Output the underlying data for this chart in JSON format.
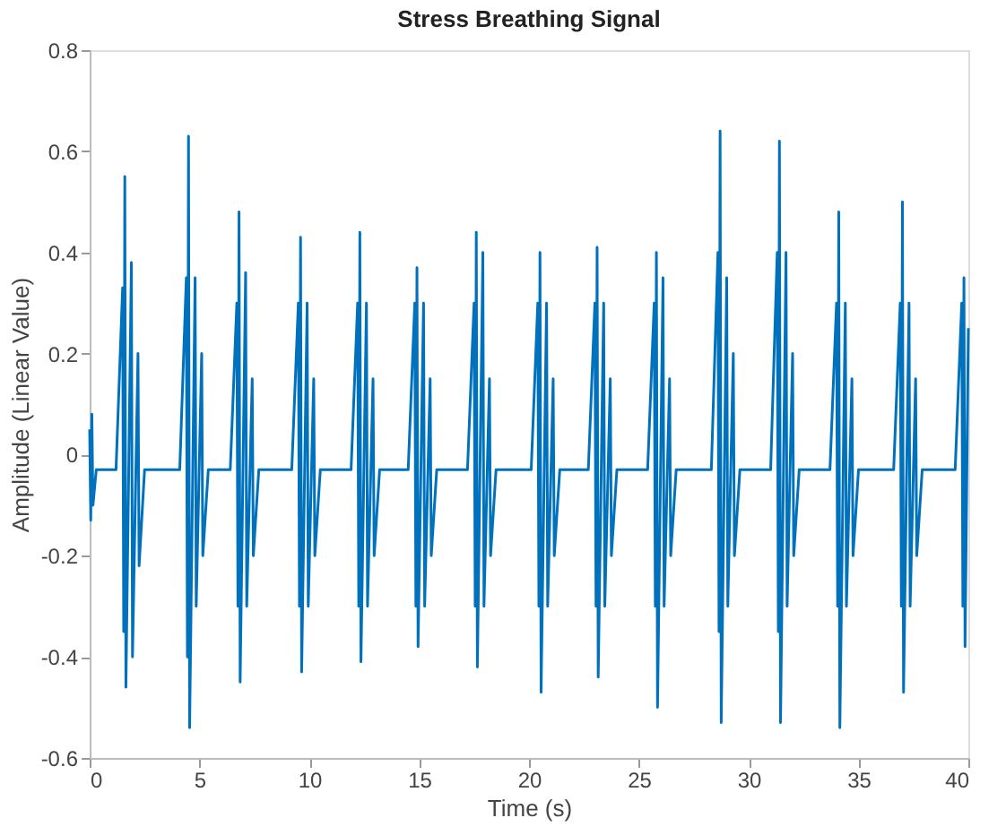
{
  "chart_data": {
    "type": "line",
    "title": "Stress Breathing Signal",
    "xlabel": "Time (s)",
    "ylabel": "Amplitude (Linear Value)",
    "xlim": [
      0,
      40
    ],
    "xticks": [
      0,
      5,
      10,
      15,
      20,
      25,
      30,
      35,
      40
    ],
    "ylim": [
      -0.6,
      0.8
    ],
    "yticks": [
      -0.6,
      -0.4,
      -0.2,
      0,
      0.2,
      0.4,
      0.6,
      0.8
    ],
    "grid": false,
    "legend": false,
    "marker": "none",
    "line_style": "solid",
    "series": [
      {
        "color": "#0072bd",
        "x": [
          0,
          0.05,
          0.1,
          0.15,
          0.3,
          1.2,
          1.5,
          1.55,
          1.6,
          1.65,
          1.9,
          1.95,
          2.2,
          2.25,
          2.5,
          4.1,
          4.4,
          4.45,
          4.5,
          4.55,
          4.8,
          4.85,
          5.1,
          5.15,
          5.4,
          6.4,
          6.7,
          6.75,
          6.8,
          6.85,
          7.1,
          7.15,
          7.4,
          7.45,
          7.7,
          9.2,
          9.5,
          9.55,
          9.6,
          9.65,
          9.9,
          9.95,
          10.2,
          10.25,
          10.5,
          11.9,
          12.2,
          12.25,
          12.3,
          12.35,
          12.6,
          12.65,
          12.9,
          12.95,
          13.2,
          14.5,
          14.8,
          14.85,
          14.9,
          14.95,
          15.2,
          15.25,
          15.5,
          15.55,
          15.8,
          17.2,
          17.5,
          17.55,
          17.6,
          17.65,
          17.9,
          17.95,
          18.2,
          18.25,
          18.5,
          20.1,
          20.4,
          20.45,
          20.5,
          20.55,
          20.8,
          20.85,
          21.1,
          21.15,
          21.4,
          22.7,
          23.0,
          23.05,
          23.1,
          23.15,
          23.4,
          23.45,
          23.7,
          23.75,
          24.0,
          25.4,
          25.7,
          25.75,
          25.8,
          25.85,
          26.1,
          26.15,
          26.4,
          26.45,
          26.7,
          28.3,
          28.6,
          28.65,
          28.7,
          28.75,
          29.0,
          29.05,
          29.3,
          29.35,
          29.6,
          31.0,
          31.3,
          31.35,
          31.4,
          31.45,
          31.7,
          31.75,
          32.0,
          32.05,
          32.3,
          33.7,
          34.0,
          34.05,
          34.1,
          34.15,
          34.4,
          34.45,
          34.7,
          34.75,
          35.0,
          36.6,
          36.9,
          36.95,
          37.0,
          37.05,
          37.3,
          37.35,
          37.6,
          37.65,
          37.9,
          39.4,
          39.7,
          39.75,
          39.8,
          39.85,
          40.0
        ],
        "values": [
          0.05,
          -0.13,
          0.08,
          -0.1,
          -0.03,
          -0.03,
          0.33,
          -0.35,
          0.55,
          -0.46,
          0.38,
          -0.4,
          0.2,
          -0.22,
          -0.03,
          -0.03,
          0.35,
          -0.4,
          0.63,
          -0.54,
          0.35,
          -0.3,
          0.2,
          -0.2,
          -0.03,
          -0.03,
          0.3,
          -0.3,
          0.48,
          -0.45,
          0.36,
          -0.3,
          0.15,
          -0.2,
          -0.03,
          -0.03,
          0.3,
          -0.3,
          0.43,
          -0.43,
          0.3,
          -0.3,
          0.15,
          -0.2,
          -0.03,
          -0.03,
          0.3,
          -0.3,
          0.44,
          -0.41,
          0.3,
          -0.3,
          0.15,
          -0.2,
          -0.03,
          -0.03,
          0.3,
          -0.3,
          0.37,
          -0.38,
          0.3,
          -0.3,
          0.15,
          -0.2,
          -0.03,
          -0.03,
          0.3,
          -0.3,
          0.44,
          -0.42,
          0.4,
          -0.3,
          0.15,
          -0.2,
          -0.03,
          -0.03,
          0.3,
          -0.3,
          0.4,
          -0.47,
          0.3,
          -0.3,
          0.15,
          -0.2,
          -0.03,
          -0.03,
          0.3,
          -0.3,
          0.41,
          -0.44,
          0.3,
          -0.3,
          0.15,
          -0.2,
          -0.03,
          -0.03,
          0.3,
          -0.3,
          0.4,
          -0.5,
          0.35,
          -0.3,
          0.15,
          -0.2,
          -0.03,
          -0.03,
          0.4,
          -0.35,
          0.64,
          -0.53,
          0.35,
          -0.3,
          0.2,
          -0.2,
          -0.03,
          -0.03,
          0.4,
          -0.35,
          0.62,
          -0.53,
          0.4,
          -0.3,
          0.2,
          -0.2,
          -0.03,
          -0.03,
          0.3,
          -0.3,
          0.48,
          -0.54,
          0.3,
          -0.3,
          0.15,
          -0.2,
          -0.03,
          -0.03,
          0.3,
          -0.3,
          0.5,
          -0.47,
          0.3,
          -0.3,
          0.15,
          -0.2,
          -0.03,
          -0.03,
          0.3,
          -0.3,
          0.35,
          -0.38,
          0.25
        ]
      }
    ]
  }
}
